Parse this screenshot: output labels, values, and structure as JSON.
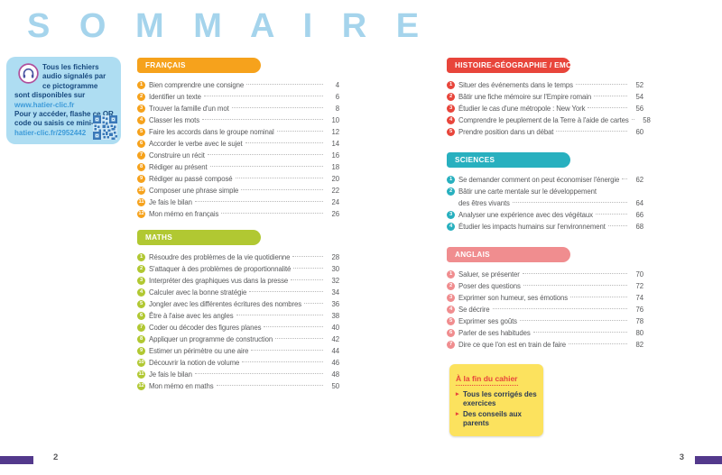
{
  "page": {
    "title": "S O M M A I R E"
  },
  "audio_box": {
    "icon": "headphones-icon",
    "text1": "Tous les fichiers audio signalés par ce pictogramme sont disponibles sur",
    "link1": "www.hatier-clic.fr",
    "text2": "Pour y accéder, flashe ce QR code ou saisis ce mini-lien :",
    "link2": "hatier-clic.fr/2952442"
  },
  "columns": [
    {
      "sections": [
        {
          "id": "francais",
          "label": "FRANÇAIS",
          "color": "#f6a21c",
          "items": [
            {
              "num": "1",
              "label": "Bien comprendre une consigne",
              "page": "4"
            },
            {
              "num": "2",
              "label": "Identifier un texte",
              "page": "6"
            },
            {
              "num": "3",
              "label": "Trouver la famille d'un mot",
              "page": "8"
            },
            {
              "num": "4",
              "label": "Classer les mots",
              "page": "10"
            },
            {
              "num": "5",
              "label": "Faire les accords dans le groupe nominal",
              "page": "12"
            },
            {
              "num": "6",
              "label": "Accorder le verbe avec le sujet",
              "page": "14"
            },
            {
              "num": "7",
              "label": "Construire un récit",
              "page": "16"
            },
            {
              "num": "8",
              "label": "Rédiger au présent",
              "page": "18"
            },
            {
              "num": "9",
              "label": "Rédiger au passé composé",
              "page": "20"
            },
            {
              "num": "10",
              "label": "Composer une phrase simple",
              "page": "22"
            },
            {
              "num": "11",
              "label": "Je fais le bilan",
              "page": "24"
            },
            {
              "num": "12",
              "label": "Mon mémo en français",
              "page": "26"
            }
          ]
        },
        {
          "id": "maths",
          "label": "MATHS",
          "color": "#b1c832",
          "items": [
            {
              "num": "1",
              "label": "Résoudre des problèmes de la vie quotidienne",
              "page": "28"
            },
            {
              "num": "2",
              "label": "S'attaquer à des problèmes de proportionnalité",
              "page": "30"
            },
            {
              "num": "3",
              "label": "Interpréter des graphiques vus dans la presse",
              "page": "32"
            },
            {
              "num": "4",
              "label": "Calculer avec la bonne stratégie",
              "page": "34"
            },
            {
              "num": "5",
              "label": "Jongler avec les différentes écritures des nombres",
              "page": "36"
            },
            {
              "num": "6",
              "label": "Être à l'aise avec les angles",
              "page": "38"
            },
            {
              "num": "7",
              "label": "Coder ou décoder des figures planes",
              "page": "40"
            },
            {
              "num": "8",
              "label": "Appliquer un programme de construction",
              "page": "42"
            },
            {
              "num": "9",
              "label": "Estimer un périmètre ou une aire",
              "page": "44"
            },
            {
              "num": "10",
              "label": "Découvrir la notion de volume",
              "page": "46"
            },
            {
              "num": "11",
              "label": "Je fais le bilan",
              "page": "48"
            },
            {
              "num": "12",
              "label": "Mon mémo en maths",
              "page": "50"
            }
          ]
        }
      ]
    },
    {
      "sections": [
        {
          "id": "histoire-geo-emc",
          "label": "HISTOIRE-GÉOGRAPHIE / EMC",
          "color": "#e8453b",
          "items": [
            {
              "num": "1",
              "label": "Situer des événements dans le temps",
              "page": "52"
            },
            {
              "num": "2",
              "label": "Bâtir une fiche mémoire sur l'Empire romain",
              "page": "54"
            },
            {
              "num": "3",
              "label": "Étudier le cas d'une métropole : New York",
              "page": "56"
            },
            {
              "num": "4",
              "label": "Comprendre le peuplement de la Terre à l'aide de cartes",
              "page": "58"
            },
            {
              "num": "5",
              "label": "Prendre position dans un débat",
              "page": "60"
            }
          ]
        },
        {
          "id": "sciences",
          "label": "SCIENCES",
          "color": "#28b0bf",
          "items": [
            {
              "num": "1",
              "label": "Se demander comment on peut économiser l'énergie",
              "page": "62"
            },
            {
              "num": "2",
              "label": "Bâtir une carte mentale sur le développement",
              "label2": "des êtres vivants",
              "page": "64"
            },
            {
              "num": "3",
              "label": "Analyser une expérience avec des végétaux",
              "page": "66"
            },
            {
              "num": "4",
              "label": "Étudier les impacts humains sur l'environnement",
              "page": "68"
            }
          ]
        },
        {
          "id": "anglais",
          "label": "ANGLAIS",
          "color": "#f08d8f",
          "items": [
            {
              "num": "1",
              "label": "Saluer, se présenter",
              "page": "70"
            },
            {
              "num": "2",
              "label": "Poser des questions",
              "page": "72"
            },
            {
              "num": "3",
              "label": "Exprimer son humeur, ses émotions",
              "page": "74"
            },
            {
              "num": "4",
              "label": "Se décrire",
              "page": "76"
            },
            {
              "num": "5",
              "label": "Exprimer ses goûts",
              "page": "78"
            },
            {
              "num": "6",
              "label": "Parler de ses habitudes",
              "page": "80"
            },
            {
              "num": "7",
              "label": "Dire ce que l'on est en train de faire",
              "page": "82"
            }
          ]
        }
      ]
    }
  ],
  "end_box": {
    "title": "À la fin du cahier",
    "items": [
      "Tous les corrigés des exercices",
      "Des conseils aux parents"
    ]
  },
  "footer": {
    "left_page_number": "2",
    "right_page_number": "3",
    "tab_color": "#53398c"
  }
}
